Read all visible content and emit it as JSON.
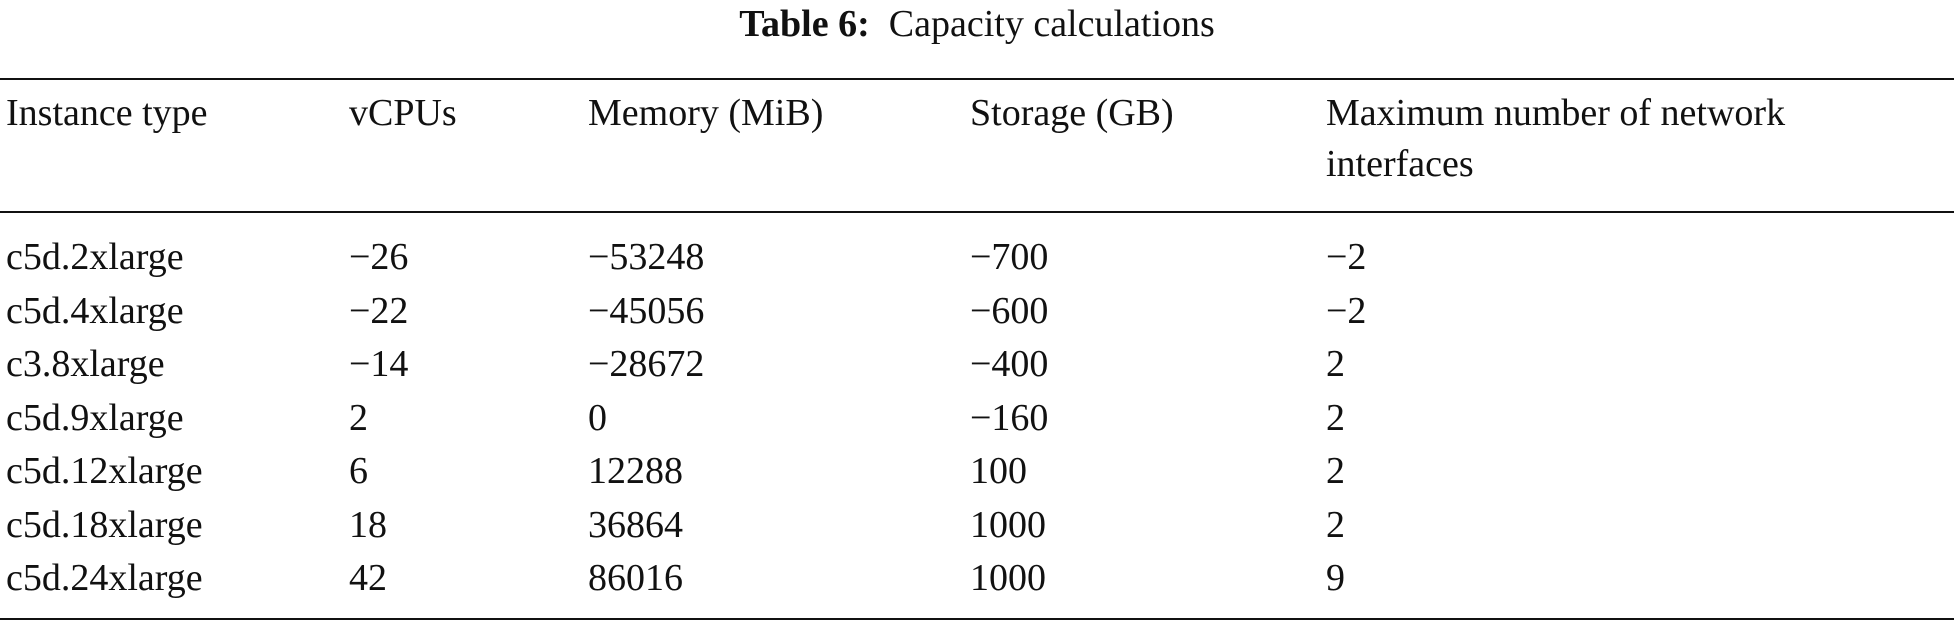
{
  "caption": {
    "label": "Table 6:",
    "text": "Capacity calculations"
  },
  "table": {
    "columns": [
      "Instance type",
      "vCPUs",
      "Memory (MiB)",
      "Storage (GB)",
      "Maximum number of network interfaces"
    ],
    "rows": [
      [
        "c5d.2xlarge",
        "−26",
        "−53248",
        "−700",
        "−2"
      ],
      [
        "c5d.4xlarge",
        "−22",
        "−45056",
        "−600",
        "−2"
      ],
      [
        "c3.8xlarge",
        "−14",
        "−28672",
        "−400",
        "2"
      ],
      [
        "c5d.9xlarge",
        "2",
        "0",
        "−160",
        "2"
      ],
      [
        "c5d.12xlarge",
        "6",
        "12288",
        "100",
        "2"
      ],
      [
        "c5d.18xlarge",
        "18",
        "36864",
        "1000",
        "2"
      ],
      [
        "c5d.24xlarge",
        "42",
        "86016",
        "1000",
        "9"
      ]
    ]
  }
}
